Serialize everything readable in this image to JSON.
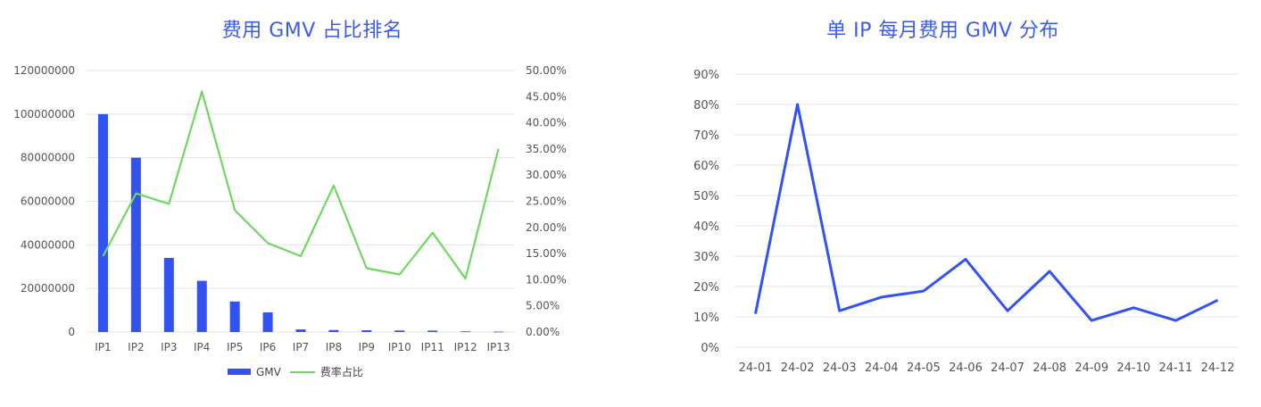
{
  "colors": {
    "bar": "#3352f2",
    "line_left": "#6ed860",
    "line_right": "#3352f2",
    "grid": "#e3e3e3",
    "title": "#3a5bf0"
  },
  "chart_data": [
    {
      "type": "bar",
      "title": "费用 GMV 占比排名",
      "categories": [
        "IP1",
        "IP2",
        "IP3",
        "IP4",
        "IP5",
        "IP6",
        "IP7",
        "IP8",
        "IP9",
        "IP10",
        "IP11",
        "IP12",
        "IP13"
      ],
      "series": [
        {
          "name": "GMV",
          "type": "bar",
          "axis": "left",
          "values": [
            100000000,
            80000000,
            34000000,
            23500000,
            14000000,
            9000000,
            1200000,
            900000,
            800000,
            700000,
            650000,
            300000,
            200000
          ]
        },
        {
          "name": "费率占比",
          "type": "line",
          "axis": "right",
          "values": [
            0.145,
            0.265,
            0.245,
            0.46,
            0.233,
            0.17,
            0.145,
            0.28,
            0.122,
            0.11,
            0.19,
            0.102,
            0.35
          ]
        }
      ],
      "y_left": {
        "ylim": [
          0,
          120000000
        ],
        "ticks": [
          "0",
          "20000000",
          "40000000",
          "60000000",
          "80000000",
          "100000000",
          "120000000"
        ]
      },
      "y_right": {
        "ylim": [
          0,
          0.5
        ],
        "ticks": [
          "0.00%",
          "5.00%",
          "10.00%",
          "15.00%",
          "20.00%",
          "25.00%",
          "30.00%",
          "35.00%",
          "40.00%",
          "45.00%",
          "50.00%"
        ]
      },
      "legend": {
        "position": "bottom",
        "items": [
          "GMV",
          "费率占比"
        ]
      },
      "grid": true
    },
    {
      "type": "line",
      "title": "单 IP 每月费用 GMV 分布",
      "categories": [
        "24-01",
        "24-02",
        "24-03",
        "24-04",
        "24-05",
        "24-06",
        "24-07",
        "24-08",
        "24-09",
        "24-10",
        "24-11",
        "24-12"
      ],
      "series": [
        {
          "values": [
            0.11,
            0.8,
            0.12,
            0.165,
            0.185,
            0.29,
            0.12,
            0.25,
            0.088,
            0.13,
            0.088,
            0.155
          ]
        }
      ],
      "ylim": [
        0,
        0.9
      ],
      "y_ticks": [
        "0%",
        "10%",
        "20%",
        "30%",
        "40%",
        "50%",
        "60%",
        "70%",
        "80%",
        "90%"
      ],
      "grid": true
    }
  ]
}
